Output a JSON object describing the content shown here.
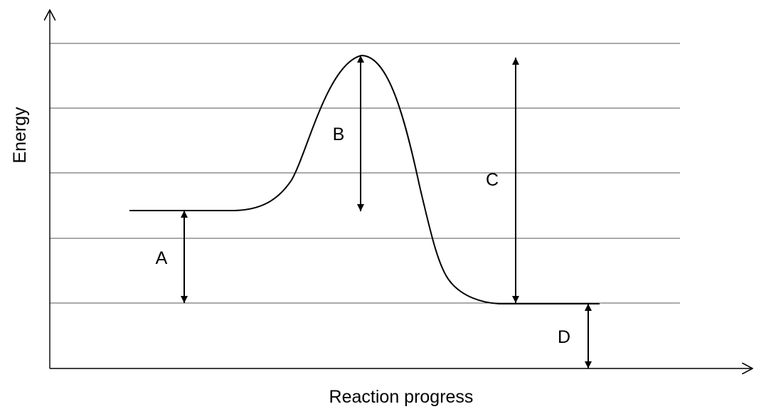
{
  "axes": {
    "y_label": "Energy",
    "x_label": "Reaction progress"
  },
  "arrows": {
    "a": "A",
    "b": "B",
    "c": "C",
    "d": "D"
  },
  "colors": {
    "ink": "#000000",
    "gridline": "#555555",
    "background": "#ffffff"
  }
}
